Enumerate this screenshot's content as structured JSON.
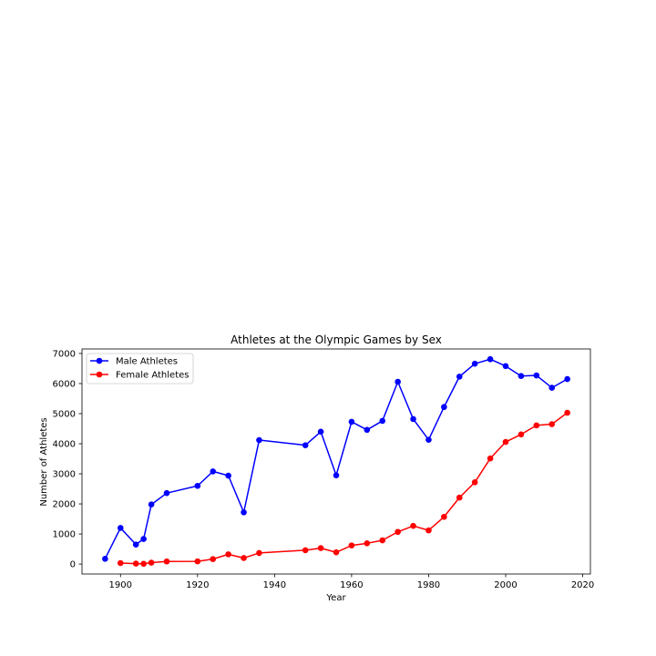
{
  "chart_data": {
    "type": "line",
    "title": "Athletes at the Olympic Games by Sex",
    "xlabel": "Year",
    "ylabel": "Number of Athletes",
    "xlim": [
      1890,
      2022
    ],
    "ylim": [
      -330,
      7150
    ],
    "xticks": [
      1900,
      1920,
      1940,
      1960,
      1980,
      2000,
      2020
    ],
    "yticks": [
      0,
      1000,
      2000,
      3000,
      4000,
      5000,
      6000,
      7000
    ],
    "grid": false,
    "legend_position": "upper-left",
    "series": [
      {
        "name": "Male Athletes",
        "color": "#0000ff",
        "marker": "circle",
        "points": [
          [
            1896,
            176
          ],
          [
            1900,
            1201
          ],
          [
            1904,
            650
          ],
          [
            1906,
            835
          ],
          [
            1908,
            1980
          ],
          [
            1912,
            2360
          ],
          [
            1920,
            2600
          ],
          [
            1924,
            3080
          ],
          [
            1928,
            2940
          ],
          [
            1932,
            1720
          ],
          [
            1936,
            4120
          ],
          [
            1948,
            3950
          ],
          [
            1952,
            4400
          ],
          [
            1956,
            2950
          ],
          [
            1960,
            4730
          ],
          [
            1964,
            4460
          ],
          [
            1968,
            4760
          ],
          [
            1972,
            6060
          ],
          [
            1976,
            4820
          ],
          [
            1980,
            4130
          ],
          [
            1984,
            5220
          ],
          [
            1988,
            6230
          ],
          [
            1992,
            6660
          ],
          [
            1996,
            6810
          ],
          [
            2000,
            6580
          ],
          [
            2004,
            6250
          ],
          [
            2008,
            6270
          ],
          [
            2012,
            5860
          ],
          [
            2016,
            6150
          ]
        ]
      },
      {
        "name": "Female Athletes",
        "color": "#ff0000",
        "marker": "circle",
        "points": [
          [
            1900,
            33
          ],
          [
            1904,
            16
          ],
          [
            1906,
            11
          ],
          [
            1908,
            47
          ],
          [
            1912,
            87
          ],
          [
            1920,
            90
          ],
          [
            1924,
            166
          ],
          [
            1928,
            325
          ],
          [
            1932,
            201
          ],
          [
            1936,
            369
          ],
          [
            1948,
            460
          ],
          [
            1952,
            530
          ],
          [
            1956,
            390
          ],
          [
            1960,
            620
          ],
          [
            1964,
            690
          ],
          [
            1968,
            790
          ],
          [
            1972,
            1070
          ],
          [
            1976,
            1270
          ],
          [
            1980,
            1120
          ],
          [
            1984,
            1570
          ],
          [
            1988,
            2210
          ],
          [
            1992,
            2720
          ],
          [
            1996,
            3510
          ],
          [
            2000,
            4060
          ],
          [
            2004,
            4310
          ],
          [
            2008,
            4610
          ],
          [
            2012,
            4650
          ],
          [
            2016,
            5030
          ]
        ]
      }
    ]
  }
}
